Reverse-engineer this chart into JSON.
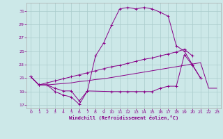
{
  "xlabel": "Windchill (Refroidissement éolien,°C)",
  "bg_color": "#cce8e8",
  "line_color": "#880088",
  "grid_color": "#aacccc",
  "xlim": [
    -0.5,
    23.5
  ],
  "ylim": [
    16.5,
    32.2
  ],
  "yticks": [
    17,
    19,
    21,
    23,
    25,
    27,
    29,
    31
  ],
  "xticks": [
    0,
    1,
    2,
    3,
    4,
    5,
    6,
    7,
    8,
    9,
    10,
    11,
    12,
    13,
    14,
    15,
    16,
    17,
    18,
    19,
    20,
    21,
    22,
    23
  ],
  "line1_x": [
    0,
    1,
    2,
    3,
    4,
    5,
    6,
    7,
    8,
    9,
    10,
    11,
    12,
    13,
    14,
    15,
    16,
    17,
    18,
    19,
    20,
    21
  ],
  "line1_y": [
    21.2,
    20.0,
    20.0,
    19.0,
    18.5,
    18.2,
    17.1,
    19.1,
    24.3,
    26.2,
    28.9,
    31.3,
    31.5,
    31.3,
    31.5,
    31.3,
    30.8,
    30.2,
    25.8,
    25.0,
    23.0,
    21.0
  ],
  "line2_x": [
    0,
    1,
    2,
    3,
    4,
    5,
    6,
    7,
    8,
    9,
    10,
    11,
    12,
    13,
    14,
    15,
    16,
    17,
    18,
    19,
    20
  ],
  "line2_y": [
    21.2,
    20.0,
    20.3,
    20.6,
    20.9,
    21.2,
    21.5,
    21.8,
    22.1,
    22.4,
    22.7,
    22.9,
    23.2,
    23.5,
    23.8,
    24.0,
    24.3,
    24.6,
    24.9,
    25.3,
    24.3
  ],
  "line3_x": [
    0,
    1,
    2,
    3,
    4,
    5,
    6,
    7,
    8,
    9,
    10,
    11,
    12,
    13,
    14,
    15,
    16,
    17,
    18,
    19,
    20,
    21,
    22,
    23
  ],
  "line3_y": [
    21.2,
    20.0,
    20.0,
    20.1,
    20.2,
    20.3,
    20.5,
    20.6,
    20.8,
    20.9,
    21.1,
    21.3,
    21.5,
    21.7,
    21.9,
    22.1,
    22.3,
    22.5,
    22.7,
    22.9,
    23.1,
    23.3,
    19.5,
    19.5
  ],
  "line4_x": [
    0,
    1,
    2,
    3,
    4,
    5,
    6,
    7,
    10,
    11,
    12,
    13,
    14,
    15,
    16,
    17,
    18,
    19,
    20,
    21
  ],
  "line4_y": [
    21.2,
    20.0,
    20.0,
    19.5,
    19.1,
    19.1,
    17.6,
    19.1,
    19.0,
    19.0,
    19.0,
    19.0,
    19.0,
    19.0,
    19.5,
    19.8,
    19.8,
    24.5,
    22.9,
    21.0
  ]
}
